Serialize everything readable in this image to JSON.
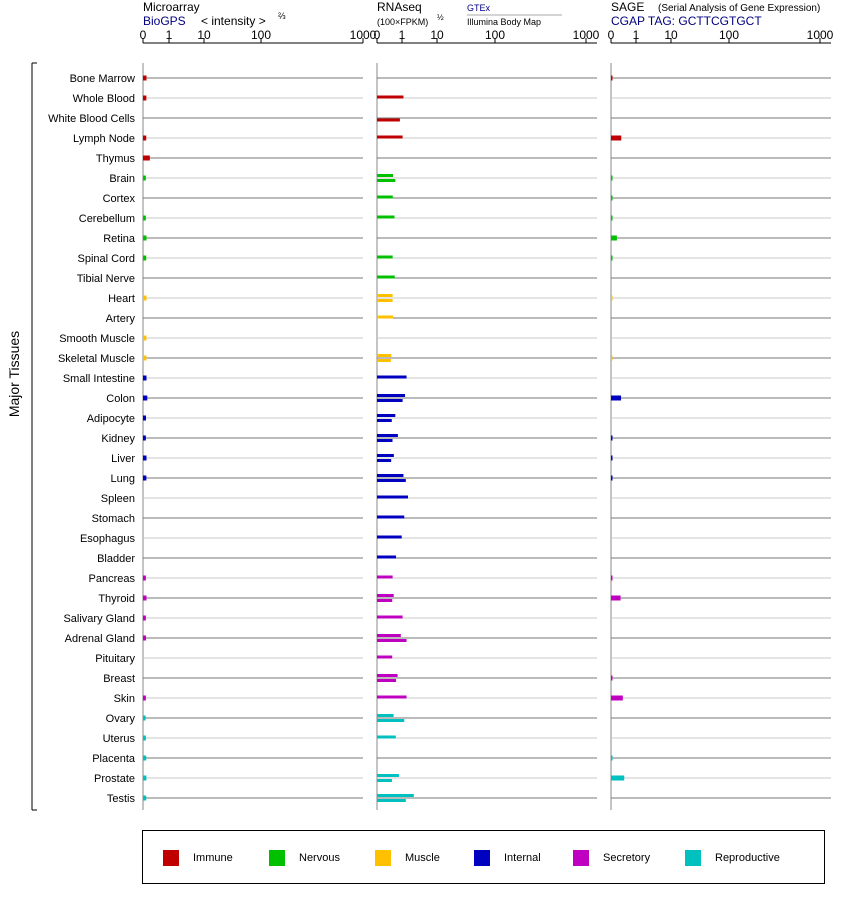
{
  "y_axis_title": "Major Tissues",
  "panels": [
    {
      "title": "Microarray",
      "subtitle_link": "BioGPS",
      "extra_label": "< intensity >",
      "extra_exponent": "⅔",
      "ticks": [
        "0",
        "1",
        "10",
        "100",
        "1000"
      ]
    },
    {
      "title": "RNAseq",
      "subtitle_small": "(100×FPKM)",
      "subtitle_exponent": "½",
      "source_link": "GTEx",
      "source2": "Illumina Body Map",
      "ticks": [
        "0",
        "1",
        "10",
        "100",
        "1000"
      ]
    },
    {
      "title": "SAGE",
      "title_note": "(Serial Analysis of Gene Expression)",
      "tag_label": "CGAP TAG: GCTTCGTGCT",
      "ticks": [
        "0",
        "1",
        "10",
        "100",
        "1000"
      ]
    }
  ],
  "legend": [
    {
      "label": "Immune",
      "color": "#c00000"
    },
    {
      "label": "Nervous",
      "color": "#00c000"
    },
    {
      "label": "Muscle",
      "color": "#ffc000"
    },
    {
      "label": "Internal",
      "color": "#0000c0"
    },
    {
      "label": "Secretory",
      "color": "#c000c0"
    },
    {
      "label": "Reproductive",
      "color": "#00c0c0"
    }
  ],
  "chart_data": {
    "type": "bar",
    "x_scale": "power (microarray ^2/3, RNAseq ^1/2, SAGE ^1/2)",
    "xlim": [
      0,
      1000
    ],
    "categories": [
      "Bone Marrow",
      "Whole Blood",
      "White Blood Cells",
      "Lymph Node",
      "Thymus",
      "Brain",
      "Cortex",
      "Cerebellum",
      "Retina",
      "Spinal Cord",
      "Tibial Nerve",
      "Heart",
      "Artery",
      "Smooth Muscle",
      "Skeletal Muscle",
      "Small Intestine",
      "Colon",
      "Adipocyte",
      "Kidney",
      "Liver",
      "Lung",
      "Spleen",
      "Stomach",
      "Esophagus",
      "Bladder",
      "Pancreas",
      "Thyroid",
      "Salivary Gland",
      "Adrenal Gland",
      "Pituitary",
      "Breast",
      "Skin",
      "Ovary",
      "Uterus",
      "Placenta",
      "Prostate",
      "Testis"
    ],
    "groups": [
      "Immune",
      "Immune",
      "Immune",
      "Immune",
      "Immune",
      "Nervous",
      "Nervous",
      "Nervous",
      "Nervous",
      "Nervous",
      "Nervous",
      "Muscle",
      "Muscle",
      "Muscle",
      "Muscle",
      "Internal",
      "Internal",
      "Internal",
      "Internal",
      "Internal",
      "Internal",
      "Internal",
      "Internal",
      "Internal",
      "Internal",
      "Secretory",
      "Secretory",
      "Secretory",
      "Secretory",
      "Secretory",
      "Secretory",
      "Secretory",
      "Reproductive",
      "Reproductive",
      "Reproductive",
      "Reproductive",
      "Reproductive"
    ],
    "series": [
      {
        "name": "Microarray",
        "values": [
          2.0,
          1.9,
          null,
          1.8,
          5.5,
          1.5,
          null,
          1.5,
          2.0,
          1.8,
          null,
          2.0,
          null,
          1.9,
          1.9,
          2.0,
          2.7,
          1.6,
          1.5,
          2.0,
          1.9,
          null,
          null,
          null,
          null,
          1.5,
          2.0,
          1.5,
          1.6,
          null,
          null,
          1.5,
          1.3,
          1.5,
          1.8,
          1.9,
          1.8
        ]
      },
      {
        "name": "GTEx",
        "values": [
          null,
          16,
          null,
          15,
          null,
          5.9,
          5.7,
          7.0,
          null,
          5.6,
          7.2,
          5.6,
          5.9,
          null,
          4.7,
          20,
          18,
          7.7,
          10,
          6.5,
          16,
          22,
          17,
          14,
          8.3,
          5.6,
          6.4,
          15,
          13,
          5.3,
          9.7,
          20,
          6.3,
          8.1,
          null,
          11,
          31
        ]
      },
      {
        "name": "Illumina Body Map",
        "values": [
          null,
          null,
          12,
          null,
          null,
          7.7,
          null,
          null,
          null,
          null,
          null,
          5.6,
          null,
          null,
          4.4,
          null,
          15,
          5.0,
          5.5,
          4.6,
          19,
          null,
          null,
          null,
          null,
          null,
          5.3,
          null,
          20,
          null,
          8.3,
          null,
          17,
          null,
          null,
          5.1,
          19
        ]
      },
      {
        "name": "SAGE",
        "values": [
          0.02,
          null,
          null,
          2.4,
          null,
          0.01,
          0.01,
          0.01,
          0.8,
          0.01,
          null,
          0.005,
          null,
          null,
          0.005,
          null,
          2.3,
          null,
          0.02,
          0.02,
          0.02,
          null,
          null,
          null,
          null,
          0.02,
          2.1,
          null,
          null,
          null,
          0.02,
          3.2,
          null,
          null,
          0.005,
          4.0,
          null
        ]
      }
    ]
  }
}
